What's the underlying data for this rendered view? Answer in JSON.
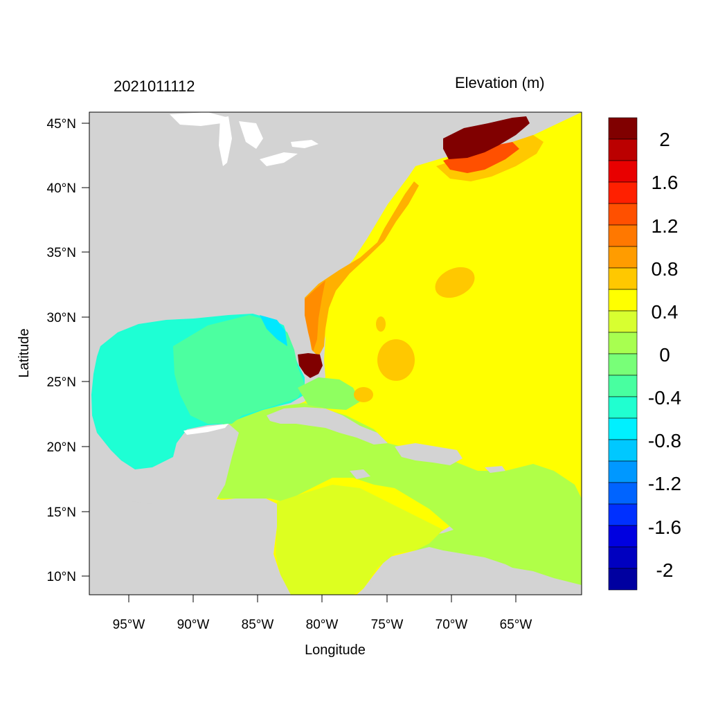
{
  "map": {
    "date_label": "2021011112",
    "field_label": "Elevation (m)",
    "x_axis_title": "Longitude",
    "y_axis_title": "Latitude",
    "lat_ticks": [
      "45°N",
      "40°N",
      "35°N",
      "30°N",
      "25°N",
      "20°N",
      "15°N",
      "10°N"
    ],
    "lon_ticks": [
      "95°W",
      "90°W",
      "85°W",
      "80°W",
      "75°W",
      "70°W",
      "65°W"
    ],
    "land_color": "#d3d3d3",
    "colorbar": {
      "labels": [
        "2",
        "1.6",
        "1.2",
        "0.8",
        "0.4",
        "0",
        "-0.4",
        "-0.8",
        "-1.2",
        "-1.6",
        "-2"
      ],
      "colors": [
        "#800000",
        "#bb0000",
        "#e80000",
        "#ff2000",
        "#ff5000",
        "#ff7800",
        "#ff9c00",
        "#ffc800",
        "#ffff00",
        "#d8ff30",
        "#a8ff50",
        "#78ff78",
        "#48ffa0",
        "#20ffd0",
        "#00f0ff",
        "#00c8ff",
        "#0098ff",
        "#0064ff",
        "#0030ff",
        "#0000e0",
        "#0000c0",
        "#0000a0"
      ]
    }
  }
}
